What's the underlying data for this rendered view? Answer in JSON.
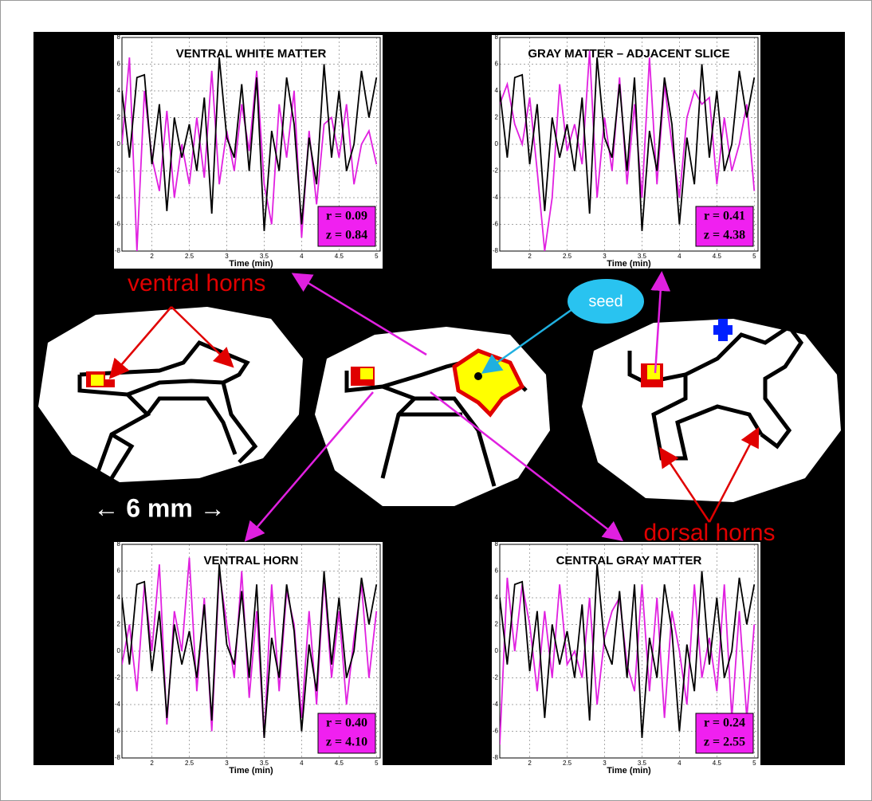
{
  "chart_data": [
    {
      "type": "line",
      "title": "VENTRAL WHITE MATTER",
      "xlabel": "Time (min)",
      "annotations": [
        "r = 0.09",
        "z = 0.84"
      ],
      "x": [
        1.6,
        1.7,
        1.8,
        1.9,
        2.0,
        2.1,
        2.2,
        2.3,
        2.4,
        2.5,
        2.6,
        2.7,
        2.8,
        2.9,
        3.0,
        3.1,
        3.2,
        3.3,
        3.4,
        3.5,
        3.6,
        3.7,
        3.8,
        3.9,
        4.0,
        4.1,
        4.2,
        4.3,
        4.4,
        4.5,
        4.6,
        4.7,
        4.8,
        4.9,
        5.0
      ],
      "series": [
        {
          "color": "#000000",
          "values": [
            4,
            -1,
            5,
            5.2,
            -1.5,
            3,
            -5,
            2,
            -1,
            1.5,
            -2,
            3.5,
            -5.2,
            6.5,
            0.5,
            -1,
            4.5,
            -2,
            5,
            -6.5,
            1,
            -2,
            5,
            1.5,
            -6,
            0.5,
            -3,
            6,
            -1,
            4,
            -2,
            0,
            5.5,
            2,
            5
          ]
        },
        {
          "color": "#e020e0",
          "values": [
            0,
            6.5,
            -8,
            4,
            -1,
            -3.5,
            2.5,
            -4,
            0,
            -3,
            2,
            -2.5,
            5.5,
            -3,
            1,
            -2,
            3,
            -0.5,
            5.5,
            -3,
            -6,
            3,
            -1,
            4,
            -7,
            1,
            -4.5,
            1.5,
            2,
            -1,
            3,
            -3,
            0,
            1,
            -1.5
          ]
        }
      ],
      "xlim": [
        1.6,
        5.05
      ],
      "ylim": [
        -8,
        8
      ],
      "xticks": [
        2,
        2.5,
        3,
        3.5,
        4,
        4.5,
        5
      ],
      "yticks": [
        -8,
        -6,
        -4,
        -2,
        0,
        2,
        4,
        6,
        8
      ],
      "grid": true
    },
    {
      "type": "line",
      "title": "GRAY MATTER – ADJACENT SLICE",
      "xlabel": "Time (min)",
      "annotations": [
        "r = 0.41",
        "z = 4.38"
      ],
      "x": [
        1.6,
        1.7,
        1.8,
        1.9,
        2.0,
        2.1,
        2.2,
        2.3,
        2.4,
        2.5,
        2.6,
        2.7,
        2.8,
        2.9,
        3.0,
        3.1,
        3.2,
        3.3,
        3.4,
        3.5,
        3.6,
        3.7,
        3.8,
        3.9,
        4.0,
        4.1,
        4.2,
        4.3,
        4.4,
        4.5,
        4.6,
        4.7,
        4.8,
        4.9,
        5.0
      ],
      "series": [
        {
          "color": "#000000",
          "values": [
            4,
            -1,
            5,
            5.2,
            -1.5,
            3,
            -5,
            2,
            -1,
            1.5,
            -2,
            3.5,
            -5.2,
            6.5,
            0.5,
            -1,
            4.5,
            -2,
            5,
            -6.5,
            1,
            -2,
            5,
            1.5,
            -6,
            0.5,
            -3,
            6,
            -1,
            4,
            -2,
            0,
            5.5,
            2,
            5
          ]
        },
        {
          "color": "#e020e0",
          "values": [
            3,
            4.5,
            1.5,
            0,
            3.5,
            -2,
            -8,
            -4,
            4.5,
            -0.5,
            1.5,
            -1.5,
            7,
            -4,
            2,
            -2,
            5,
            -3,
            3,
            -4,
            6.5,
            -3,
            4.5,
            0,
            -4,
            2,
            4,
            3,
            3.5,
            -3,
            2,
            -2,
            0,
            3,
            -3.5
          ]
        }
      ],
      "xlim": [
        1.6,
        5.05
      ],
      "ylim": [
        -8,
        8
      ],
      "xticks": [
        2,
        2.5,
        3,
        3.5,
        4,
        4.5,
        5
      ],
      "yticks": [
        -8,
        -6,
        -4,
        -2,
        0,
        2,
        4,
        6,
        8
      ],
      "grid": true
    },
    {
      "type": "line",
      "title": "VENTRAL HORN",
      "xlabel": "Time (min)",
      "annotations": [
        "r = 0.40",
        "z = 4.10"
      ],
      "x": [
        1.6,
        1.7,
        1.8,
        1.9,
        2.0,
        2.1,
        2.2,
        2.3,
        2.4,
        2.5,
        2.6,
        2.7,
        2.8,
        2.9,
        3.0,
        3.1,
        3.2,
        3.3,
        3.4,
        3.5,
        3.6,
        3.7,
        3.8,
        3.9,
        4.0,
        4.1,
        4.2,
        4.3,
        4.4,
        4.5,
        4.6,
        4.7,
        4.8,
        4.9,
        5.0
      ],
      "series": [
        {
          "color": "#000000",
          "values": [
            4,
            -1,
            5,
            5.2,
            -1.5,
            3,
            -5,
            2,
            -1,
            1.5,
            -2,
            3.5,
            -5.2,
            6.5,
            0.5,
            -1,
            4.5,
            -2,
            5,
            -6.5,
            1,
            -2,
            5,
            1.5,
            -6,
            0.5,
            -3,
            6,
            -1,
            4,
            -2,
            0,
            5.5,
            2,
            5
          ]
        },
        {
          "color": "#e020e0",
          "values": [
            -1,
            2,
            -3,
            5,
            0,
            6.5,
            -5.5,
            3,
            0,
            7,
            -3,
            4,
            -6,
            6,
            2,
            -2,
            6,
            -3.5,
            3,
            -6.5,
            5,
            -3,
            4.5,
            2,
            -5,
            3,
            -4,
            5.5,
            -2,
            3,
            -4,
            1,
            5,
            -2,
            3
          ]
        }
      ],
      "xlim": [
        1.6,
        5.05
      ],
      "ylim": [
        -8,
        8
      ],
      "xticks": [
        2,
        2.5,
        3,
        3.5,
        4,
        4.5,
        5
      ],
      "yticks": [
        -8,
        -6,
        -4,
        -2,
        0,
        2,
        4,
        6,
        8
      ],
      "grid": true
    },
    {
      "type": "line",
      "title": "CENTRAL GRAY MATTER",
      "xlabel": "Time (min)",
      "annotations": [
        "r = 0.24",
        "z = 2.55"
      ],
      "x": [
        1.6,
        1.7,
        1.8,
        1.9,
        2.0,
        2.1,
        2.2,
        2.3,
        2.4,
        2.5,
        2.6,
        2.7,
        2.8,
        2.9,
        3.0,
        3.1,
        3.2,
        3.3,
        3.4,
        3.5,
        3.6,
        3.7,
        3.8,
        3.9,
        4.0,
        4.1,
        4.2,
        4.3,
        4.4,
        4.5,
        4.6,
        4.7,
        4.8,
        4.9,
        5.0
      ],
      "series": [
        {
          "color": "#000000",
          "values": [
            4,
            -1,
            5,
            5.2,
            -1.5,
            3,
            -5,
            2,
            -1,
            1.5,
            -2,
            3.5,
            -5.2,
            6.5,
            0.5,
            -1,
            4.5,
            -2,
            5,
            -6.5,
            1,
            -2,
            5,
            1.5,
            -6,
            0.5,
            -3,
            6,
            -1,
            4,
            -2,
            0,
            5.5,
            2,
            5
          ]
        },
        {
          "color": "#e020e0",
          "values": [
            -7,
            5.5,
            0,
            5,
            2,
            -3,
            3,
            -2,
            5,
            -1,
            0,
            -2,
            4,
            -4,
            1,
            3,
            4,
            -1,
            -3,
            5,
            -3,
            4,
            -5,
            3,
            0,
            -4,
            5,
            -2,
            1,
            -3,
            5,
            -5,
            3,
            -5,
            2
          ]
        }
      ],
      "xlim": [
        1.6,
        5.05
      ],
      "ylim": [
        -8,
        8
      ],
      "xticks": [
        2,
        2.5,
        3,
        3.5,
        4,
        4.5,
        5
      ],
      "yticks": [
        -8,
        -6,
        -4,
        -2,
        0,
        2,
        4,
        6,
        8
      ],
      "grid": true
    }
  ],
  "labels": {
    "ventral_horns": "ventral horns",
    "seed": "seed",
    "scale": "← 6 mm →",
    "dorsal_horns": "dorsal horns"
  }
}
